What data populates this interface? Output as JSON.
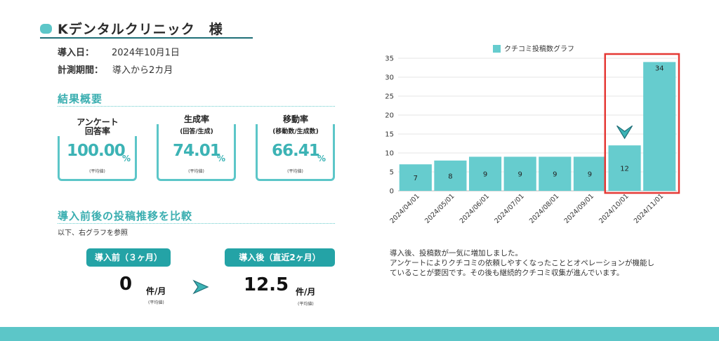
{
  "header": {
    "title": "Kデンタルクリニック　様",
    "intro_label": "導入日：",
    "intro_value": "2024年10月1日",
    "period_label": "計測期間：",
    "period_value": "導入から2カ月"
  },
  "summary": {
    "heading": "結果概要",
    "cards": [
      {
        "title": "アンケート\n回答率",
        "sub": "",
        "value": "100.00",
        "unit": "%",
        "note": "(平均値)"
      },
      {
        "title": "生成率",
        "sub": "(回答/生成)",
        "value": "74.01",
        "unit": "%",
        "note": "(平均値)"
      },
      {
        "title": "移動率",
        "sub": "(移動数/生成数)",
        "value": "66.41",
        "unit": "%",
        "note": "(平均値)"
      }
    ]
  },
  "comparison": {
    "heading": "導入前後の投稿推移を比較",
    "subtext": "以下、右グラフを参照",
    "before_label": "導入前（３ヶ月）",
    "before_value": "0",
    "before_unit": "件/月",
    "before_note": "(平均値)",
    "after_label": "導入後（直近2ヶ月）",
    "after_value": "12.5",
    "after_unit": "件/月",
    "after_note": "(平均値)"
  },
  "chart_data": {
    "type": "bar",
    "legend": "クチコミ投稿数グラフ",
    "categories": [
      "2024/04/01",
      "2024/05/01",
      "2024/06/01",
      "2024/07/01",
      "2024/08/01",
      "2024/09/01",
      "2024/10/01",
      "2024/11/01"
    ],
    "values": [
      7,
      8,
      9,
      9,
      9,
      9,
      12,
      34
    ],
    "ylim": [
      0,
      35
    ],
    "yticks": [
      0,
      5,
      10,
      15,
      20,
      25,
      30,
      35
    ],
    "highlight_categories": [
      "2024/10/01",
      "2024/11/01"
    ],
    "bar_color": "#66ccce",
    "highlight_color": "#e53935",
    "grid": true,
    "legend_position": "top"
  },
  "chart_note": [
    "導入後、投稿数が一気に増加しました。",
    "アンケートによりクチコミの依頼しやすくなったこととオペレーションが機能し",
    "ていることが要因です。その後も継続的クチコミ収集が進んでいます。"
  ],
  "colors": {
    "accent": "#5cc6c8",
    "accent_dark": "#24a3a6",
    "highlight": "#e53935"
  }
}
